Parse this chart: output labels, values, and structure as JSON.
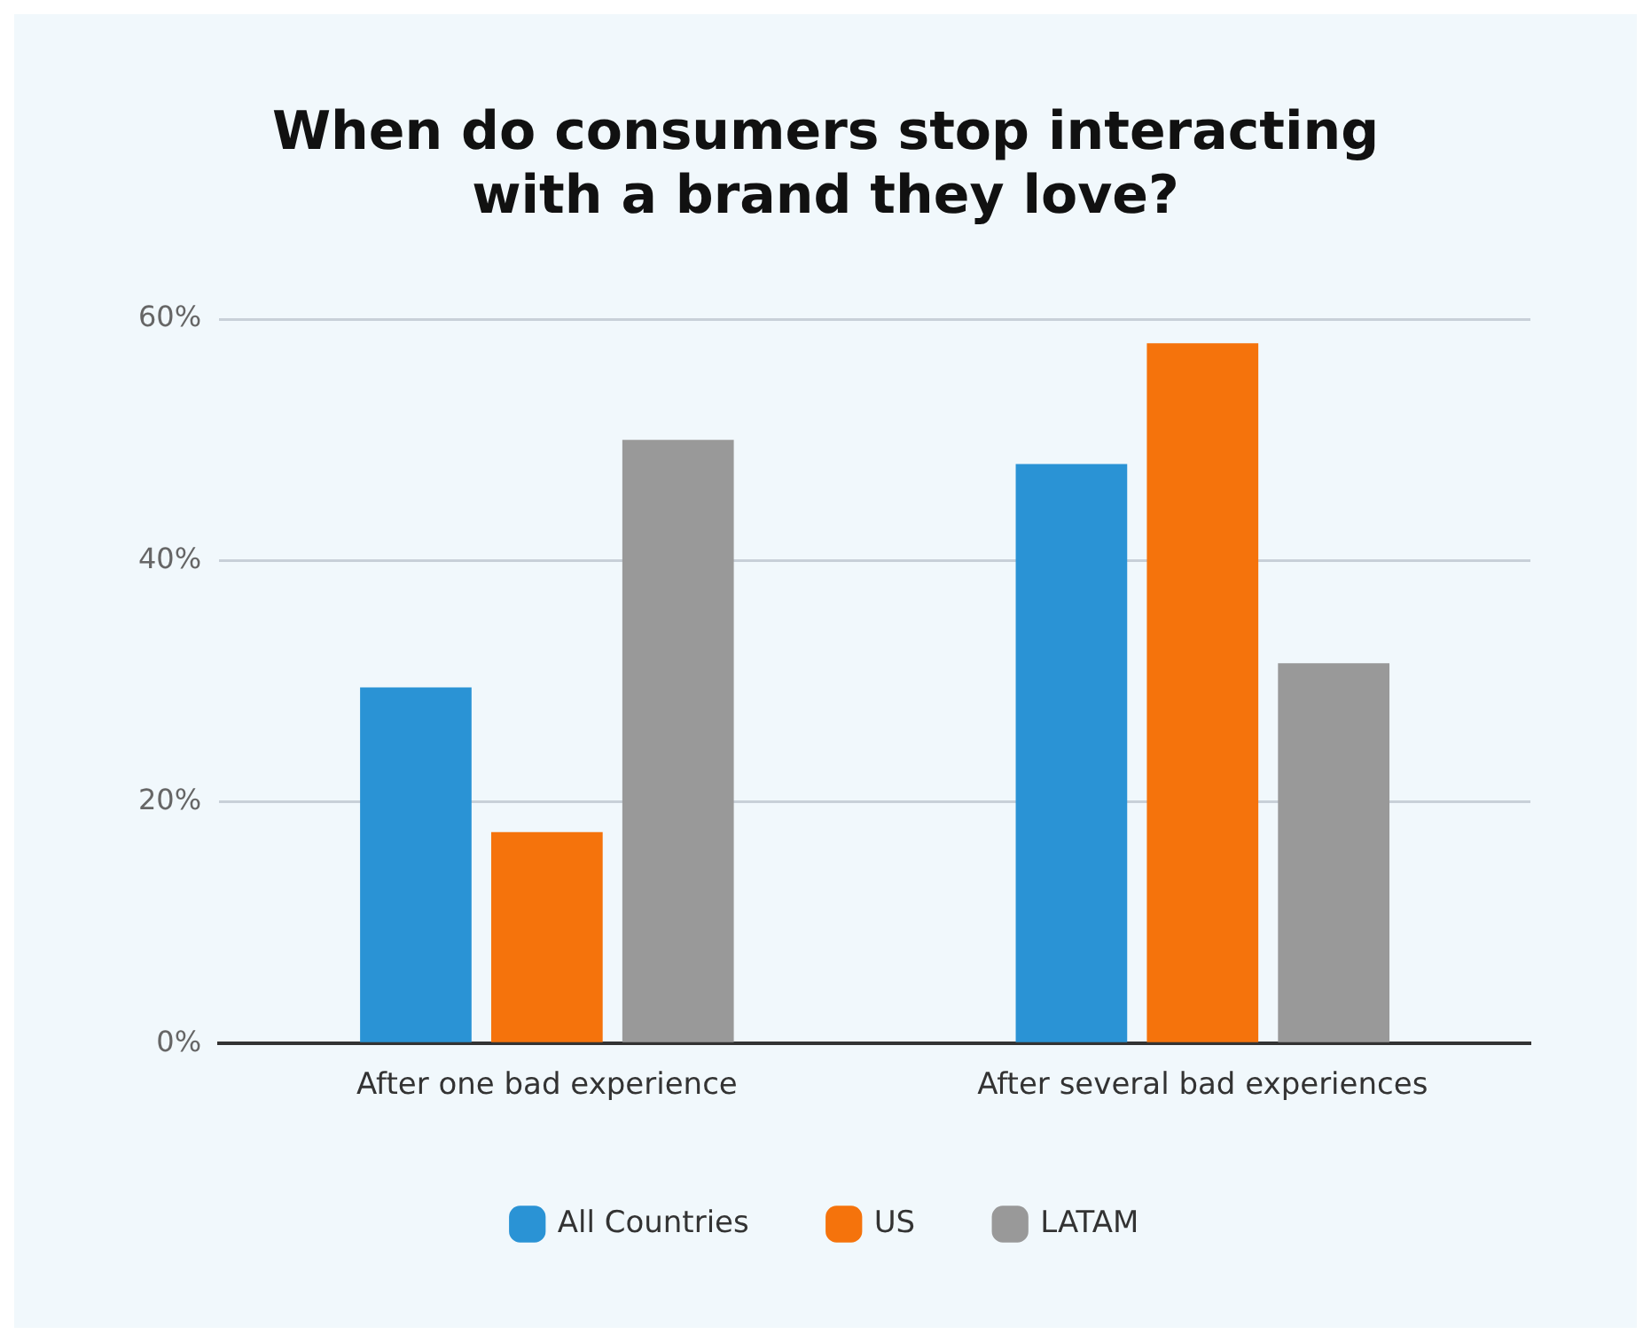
{
  "chart_data": {
    "type": "bar",
    "title": "When do consumers stop interacting with a brand they love?",
    "categories": [
      "After one bad experience",
      "After several bad experiences"
    ],
    "series": [
      {
        "name": "All Countries",
        "color": "#2a93d5",
        "values": [
          29.5,
          48
        ]
      },
      {
        "name": "US",
        "color": "#f5730c",
        "values": [
          17.5,
          58
        ]
      },
      {
        "name": "LATAM",
        "color": "#999999",
        "values": [
          50,
          31.5
        ]
      }
    ],
    "ylim": [
      0,
      60
    ],
    "yticks": [
      {
        "value": 0,
        "label": "0%"
      },
      {
        "value": 20,
        "label": "20%"
      },
      {
        "value": 40,
        "label": "40%"
      },
      {
        "value": 60,
        "label": "60%"
      }
    ],
    "grid": "y",
    "legend": "bottom"
  }
}
